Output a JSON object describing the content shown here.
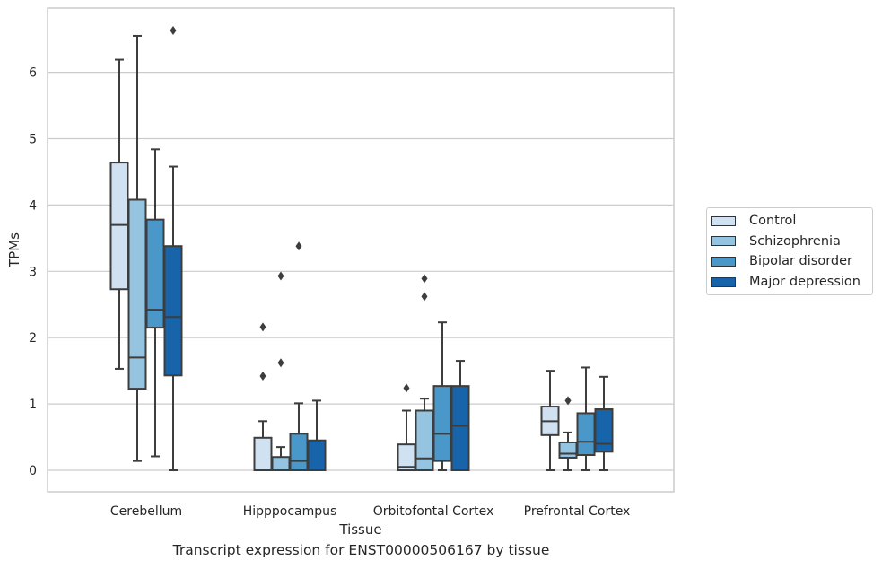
{
  "chart_data": {
    "type": "box",
    "title": "",
    "caption": "Transcript expression for ENST00000506167 by tissue",
    "xlabel": "Tissue",
    "ylabel": "TPMs",
    "ylim": [
      -0.32,
      6.97
    ],
    "yticks": [
      0,
      1,
      2,
      3,
      4,
      5,
      6
    ],
    "grid": true,
    "legend_position": "right",
    "categories": [
      "Cerebellum",
      "Hipppocampus",
      "Orbitofontal Cortex",
      "Prefrontal Cortex"
    ],
    "series": [
      {
        "name": "Control",
        "color": "#d0e1f2",
        "boxes": [
          {
            "whislo": 1.53,
            "q1": 2.73,
            "med": 3.7,
            "q3": 4.64,
            "whishi": 6.19,
            "fliers": []
          },
          {
            "whislo": 0.0,
            "q1": 0.0,
            "med": 0.0,
            "q3": 0.49,
            "whishi": 0.74,
            "fliers": [
              1.42,
              2.16
            ]
          },
          {
            "whislo": 0.0,
            "q1": 0.0,
            "med": 0.05,
            "q3": 0.39,
            "whishi": 0.9,
            "fliers": [
              1.24
            ]
          },
          {
            "whislo": 0.0,
            "q1": 0.53,
            "med": 0.74,
            "q3": 0.96,
            "whishi": 1.5,
            "fliers": []
          }
        ]
      },
      {
        "name": "Schizophrenia",
        "color": "#94c4df",
        "boxes": [
          {
            "whislo": 0.14,
            "q1": 1.23,
            "med": 1.7,
            "q3": 4.08,
            "whishi": 6.55,
            "fliers": []
          },
          {
            "whislo": 0.0,
            "q1": 0.0,
            "med": 0.0,
            "q3": 0.2,
            "whishi": 0.35,
            "fliers": [
              1.62,
              2.93
            ]
          },
          {
            "whislo": 0.0,
            "q1": 0.0,
            "med": 0.18,
            "q3": 0.9,
            "whishi": 1.08,
            "fliers": [
              2.62,
              2.89
            ]
          },
          {
            "whislo": 0.0,
            "q1": 0.19,
            "med": 0.25,
            "q3": 0.42,
            "whishi": 0.57,
            "fliers": [
              1.05
            ]
          }
        ]
      },
      {
        "name": "Bipolar disorder",
        "color": "#4a98c9",
        "boxes": [
          {
            "whislo": 0.21,
            "q1": 2.15,
            "med": 2.42,
            "q3": 3.78,
            "whishi": 4.84,
            "fliers": []
          },
          {
            "whislo": 0.0,
            "q1": 0.0,
            "med": 0.14,
            "q3": 0.55,
            "whishi": 1.01,
            "fliers": [
              3.38
            ]
          },
          {
            "whislo": 0.0,
            "q1": 0.14,
            "med": 0.55,
            "q3": 1.27,
            "whishi": 2.23,
            "fliers": []
          },
          {
            "whislo": 0.0,
            "q1": 0.23,
            "med": 0.43,
            "q3": 0.86,
            "whishi": 1.55,
            "fliers": []
          }
        ]
      },
      {
        "name": "Major depression",
        "color": "#1764ab",
        "boxes": [
          {
            "whislo": 0.0,
            "q1": 1.43,
            "med": 2.31,
            "q3": 3.38,
            "whishi": 4.58,
            "fliers": [
              6.63
            ]
          },
          {
            "whislo": 0.0,
            "q1": 0.0,
            "med": 0.0,
            "q3": 0.45,
            "whishi": 1.05,
            "fliers": []
          },
          {
            "whislo": 0.0,
            "q1": 0.0,
            "med": 0.67,
            "q3": 1.27,
            "whishi": 1.65,
            "fliers": []
          },
          {
            "whislo": 0.0,
            "q1": 0.28,
            "med": 0.4,
            "q3": 0.92,
            "whishi": 1.41,
            "fliers": []
          }
        ]
      }
    ]
  }
}
